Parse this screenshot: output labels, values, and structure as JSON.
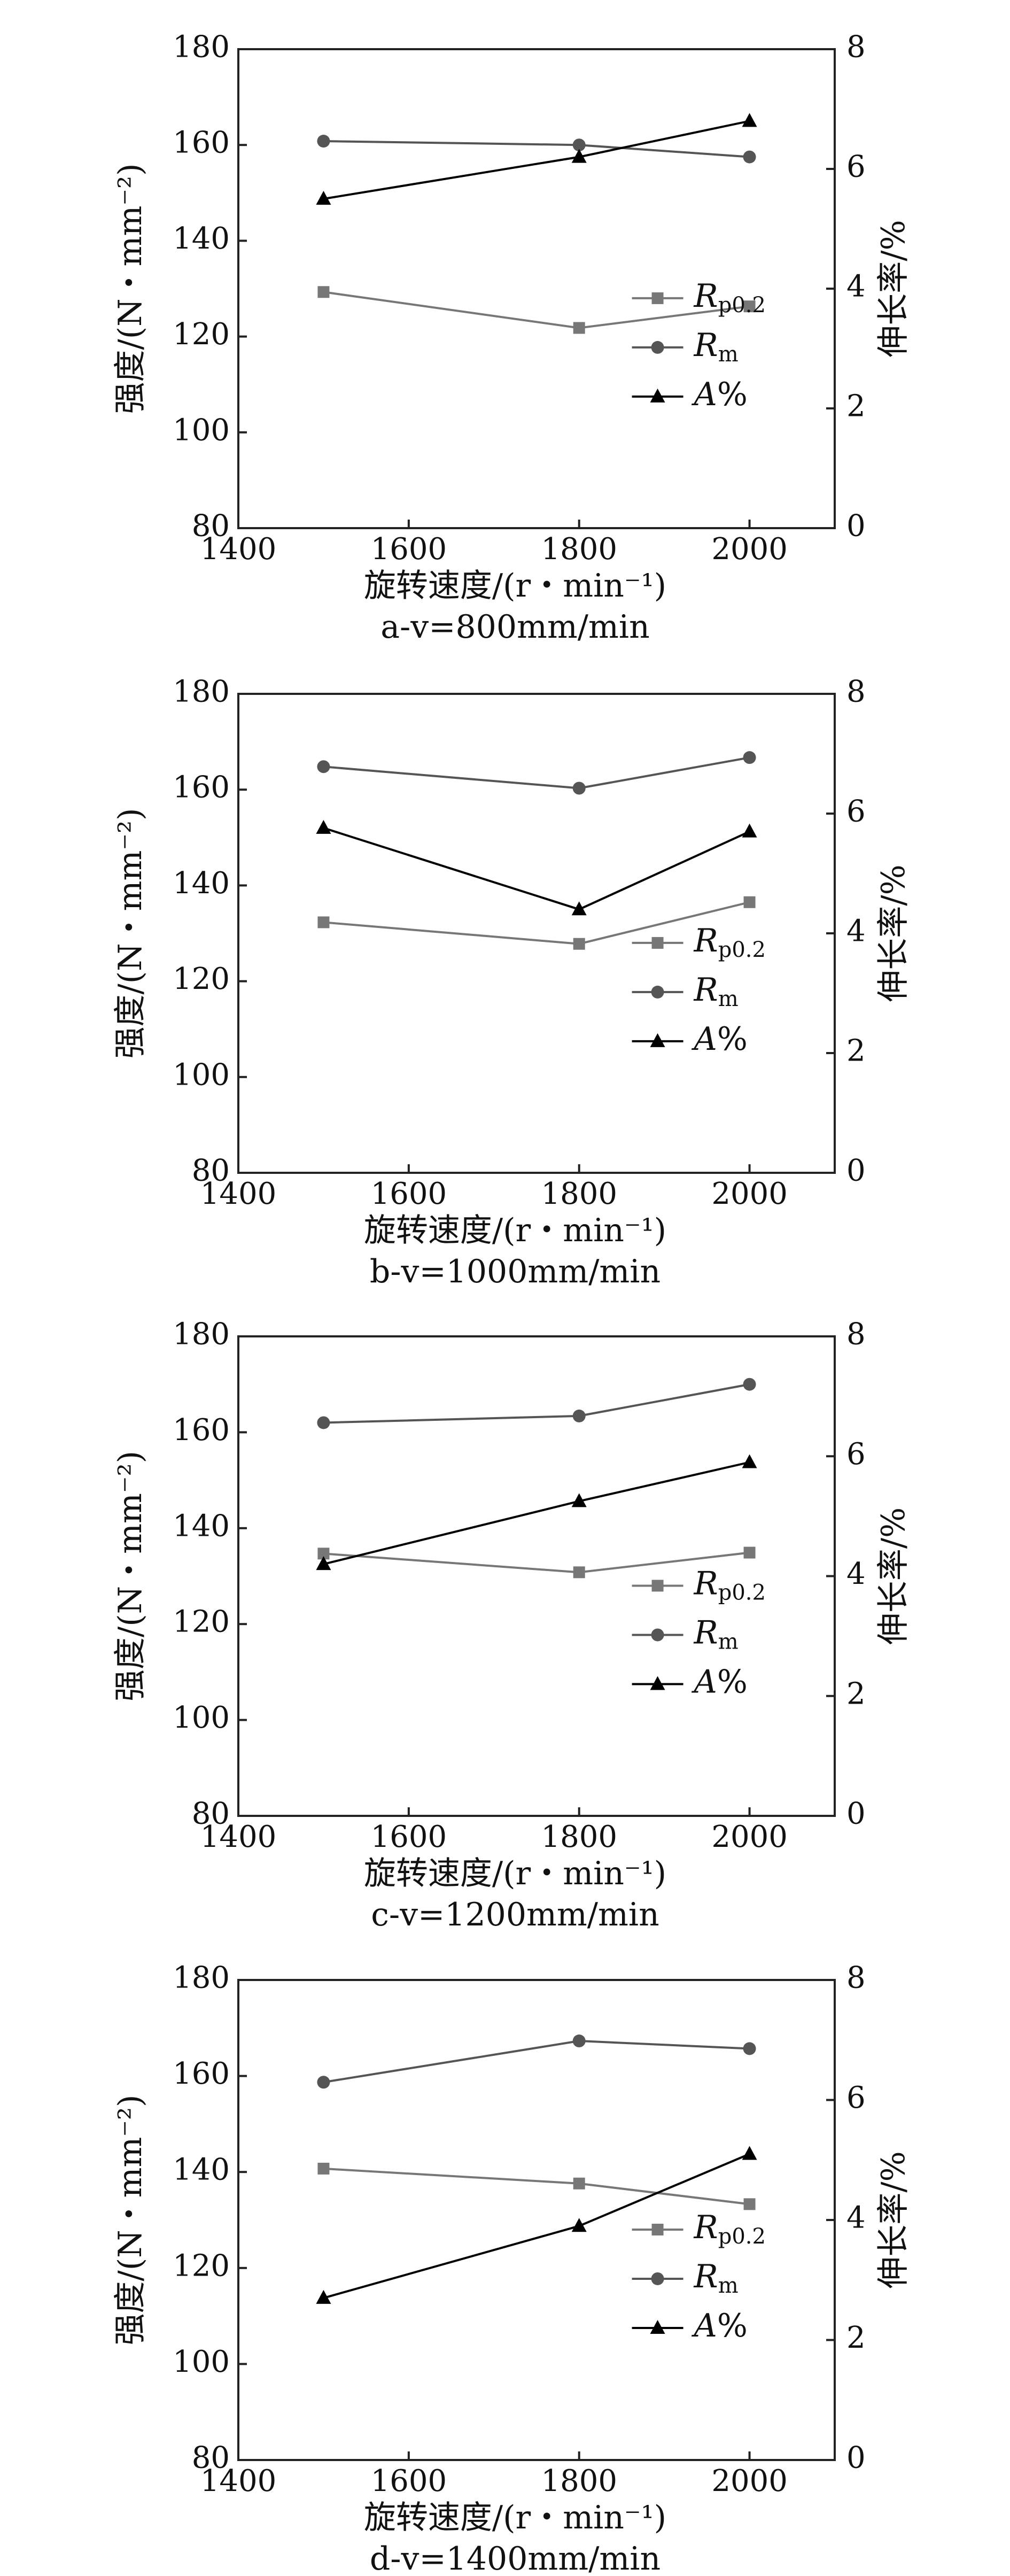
{
  "chart_data": [
    {
      "type": "line",
      "caption": "a-v=800mm/min",
      "xlabel": "旋转速度/(r・min⁻¹)",
      "ylabel_left": "强度/(N・mm⁻²)",
      "ylabel_right": "伸长率/%",
      "xlim": [
        1400,
        2100
      ],
      "ylim_left": [
        80,
        180
      ],
      "ylim_right": [
        0,
        8
      ],
      "x_ticks": [
        1400,
        1600,
        1800,
        2000
      ],
      "y_ticks_left": [
        80,
        100,
        120,
        140,
        160,
        180
      ],
      "y_ticks_right": [
        0,
        2,
        4,
        6,
        8
      ],
      "legend_position": "center-right",
      "x": [
        1500,
        1800,
        2000
      ],
      "series": [
        {
          "name": "Rp0.2",
          "axis": "left",
          "marker": "square",
          "color": "#777777",
          "values": [
            129.3,
            121.8,
            126.3
          ]
        },
        {
          "name": "Rm",
          "axis": "left",
          "marker": "circle",
          "color": "#555555",
          "values": [
            160.8,
            160.0,
            157.5
          ]
        },
        {
          "name": "A%",
          "axis": "right",
          "marker": "triangle",
          "color": "#000000",
          "values": [
            5.5,
            6.2,
            6.8
          ]
        }
      ]
    },
    {
      "type": "line",
      "caption": "b-v=1000mm/min",
      "xlabel": "旋转速度/(r・min⁻¹)",
      "ylabel_left": "强度/(N・mm⁻²)",
      "ylabel_right": "伸长率/%",
      "xlim": [
        1400,
        2100
      ],
      "ylim_left": [
        80,
        180
      ],
      "ylim_right": [
        0,
        8
      ],
      "x_ticks": [
        1400,
        1600,
        1800,
        2000
      ],
      "y_ticks_left": [
        80,
        100,
        120,
        140,
        160,
        180
      ],
      "y_ticks_right": [
        0,
        2,
        4,
        6,
        8
      ],
      "legend_position": "center-right",
      "x": [
        1500,
        1800,
        2000
      ],
      "series": [
        {
          "name": "Rp0.2",
          "axis": "left",
          "marker": "square",
          "color": "#777777",
          "values": [
            132.3,
            127.8,
            136.5
          ]
        },
        {
          "name": "Rm",
          "axis": "left",
          "marker": "circle",
          "color": "#555555",
          "values": [
            164.8,
            160.3,
            166.7
          ]
        },
        {
          "name": "A%",
          "axis": "right",
          "marker": "triangle",
          "color": "#000000",
          "values": [
            5.76,
            4.4,
            5.7
          ]
        }
      ]
    },
    {
      "type": "line",
      "caption": "c-v=1200mm/min",
      "xlabel": "旋转速度/(r・min⁻¹)",
      "ylabel_left": "强度/(N・mm⁻²)",
      "ylabel_right": "伸长率/%",
      "xlim": [
        1400,
        2100
      ],
      "ylim_left": [
        80,
        180
      ],
      "ylim_right": [
        0,
        8
      ],
      "x_ticks": [
        1400,
        1600,
        1800,
        2000
      ],
      "y_ticks_left": [
        80,
        100,
        120,
        140,
        160,
        180
      ],
      "y_ticks_right": [
        0,
        2,
        4,
        6,
        8
      ],
      "legend_position": "center-right",
      "x": [
        1500,
        1800,
        2000
      ],
      "series": [
        {
          "name": "Rp0.2",
          "axis": "left",
          "marker": "square",
          "color": "#777777",
          "values": [
            134.7,
            130.8,
            134.9
          ]
        },
        {
          "name": "Rm",
          "axis": "left",
          "marker": "circle",
          "color": "#555555",
          "values": [
            162.0,
            163.4,
            170.0
          ]
        },
        {
          "name": "A%",
          "axis": "right",
          "marker": "triangle",
          "color": "#000000",
          "values": [
            4.2,
            5.25,
            5.9
          ]
        }
      ]
    },
    {
      "type": "line",
      "caption": "d-v=1400mm/min",
      "xlabel": "旋转速度/(r・min⁻¹)",
      "ylabel_left": "强度/(N・mm⁻²)",
      "ylabel_right": "伸长率/%",
      "xlim": [
        1400,
        2100
      ],
      "ylim_left": [
        80,
        180
      ],
      "ylim_right": [
        0,
        8
      ],
      "x_ticks": [
        1400,
        1600,
        1800,
        2000
      ],
      "y_ticks_left": [
        80,
        100,
        120,
        140,
        160,
        180
      ],
      "y_ticks_right": [
        0,
        2,
        4,
        6,
        8
      ],
      "legend_position": "center-right",
      "x": [
        1500,
        1800,
        2000
      ],
      "series": [
        {
          "name": "Rp0.2",
          "axis": "left",
          "marker": "square",
          "color": "#777777",
          "values": [
            140.7,
            137.6,
            133.3
          ]
        },
        {
          "name": "Rm",
          "axis": "left",
          "marker": "circle",
          "color": "#555555",
          "values": [
            158.7,
            167.3,
            165.7
          ]
        },
        {
          "name": "A%",
          "axis": "right",
          "marker": "triangle",
          "color": "#000000",
          "values": [
            2.7,
            3.9,
            5.1
          ]
        }
      ]
    }
  ]
}
